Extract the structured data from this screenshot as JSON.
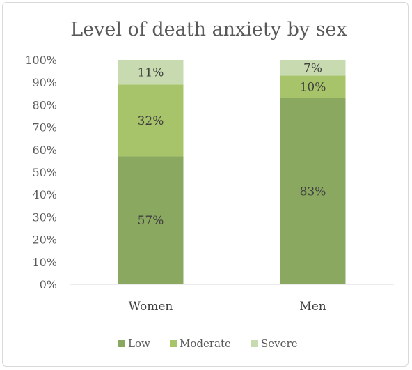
{
  "chart_data": {
    "type": "stacked-bar-100",
    "title": "Level of death anxiety by sex",
    "categories": [
      "Women",
      "Men"
    ],
    "series": [
      {
        "name": "Low",
        "values": [
          57,
          83
        ],
        "color": "#8aa860",
        "labels": [
          "57%",
          "83%"
        ]
      },
      {
        "name": "Moderate",
        "values": [
          32,
          10
        ],
        "color": "#a8c46a",
        "labels": [
          "32%",
          "10%"
        ]
      },
      {
        "name": "Severe",
        "values": [
          11,
          7
        ],
        "color": "#c8dbb0",
        "labels": [
          "11%",
          "7%"
        ]
      }
    ],
    "ylim": [
      0,
      100
    ],
    "yticks": [
      "0%",
      "10%",
      "20%",
      "30%",
      "40%",
      "50%",
      "60%",
      "70%",
      "80%",
      "90%",
      "100%"
    ],
    "grid": false,
    "legend_position": "bottom"
  }
}
